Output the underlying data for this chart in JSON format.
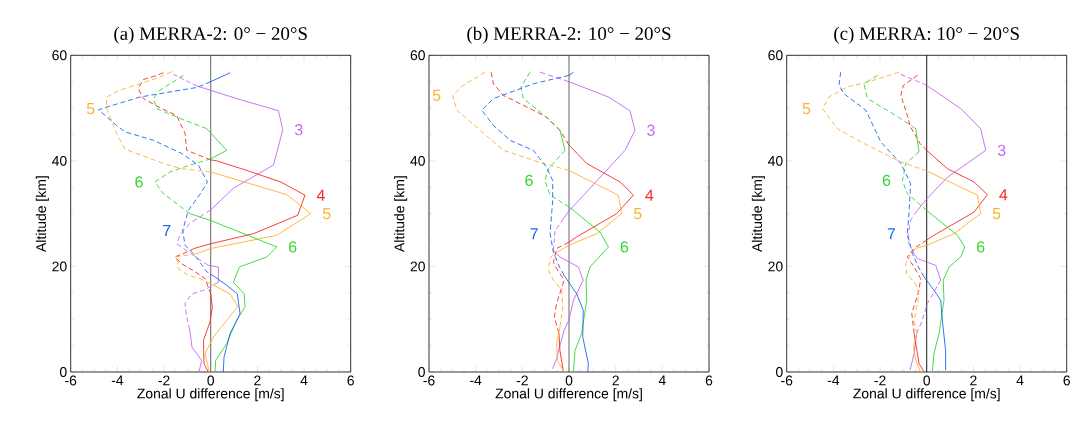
{
  "chart_data": [
    {
      "type": "line",
      "title": "(a) MERRA-2: 0° − 20°S",
      "xlabel": "Zonal U difference [m/s]",
      "ylabel": "Altitude [km]",
      "xlim": [
        -6,
        6
      ],
      "xticks": [
        -6,
        -4,
        -2,
        0,
        2,
        4,
        6
      ],
      "ylim": [
        0,
        60
      ],
      "yticks": [
        0,
        20,
        40,
        60
      ],
      "ref_lines": [
        {
          "axis": "x",
          "value": 0,
          "color": "#555555"
        }
      ],
      "annotations": [
        {
          "text": "3",
          "x": 3.09,
          "y": 45.9
        },
        {
          "text": "4",
          "x": 4.04,
          "y": 33.5
        },
        {
          "text": "5",
          "x": 4.29,
          "y": 30
        },
        {
          "text": "5",
          "x": -4.46,
          "y": 49.9
        },
        {
          "text": "6",
          "x": 2.83,
          "y": 23.7
        },
        {
          "text": "6",
          "x": -2.39,
          "y": 36
        },
        {
          "text": "7",
          "x": -1.2,
          "y": 26.8
        }
      ],
      "series": [
        {
          "color": "#c366f5",
          "line_style": "solid",
          "x": [
            -0.5,
            -0.39,
            -0.8,
            -0.9
          ],
          "values": [
            0,
            2.2,
            4.7,
            8
          ]
        },
        {
          "color": "#c366f5",
          "line_style": "dashed",
          "x": [
            -0.9,
            -1.03,
            -1.1,
            -0.81,
            -0.3,
            0.33
          ],
          "values": [
            8,
            10.4,
            13,
            14.8,
            15.5,
            17
          ]
        },
        {
          "color": "#c366f5",
          "line_style": "solid",
          "x": [
            0.33,
            0.33,
            -0.1
          ],
          "values": [
            17,
            19.9,
            20.2
          ]
        },
        {
          "color": "#c366f5",
          "line_style": "dashed",
          "x": [
            -0.1,
            -0.46,
            -1.03,
            -1.46,
            -1.31,
            -0.89,
            0
          ],
          "values": [
            20.2,
            21.2,
            23,
            24.3,
            26,
            28.2,
            30.7
          ]
        },
        {
          "color": "#c366f5",
          "line_style": "solid",
          "x": [
            0,
            0.97,
            2.69,
            3.09,
            2.9,
            1.26,
            -0.6
          ],
          "values": [
            30.7,
            34.8,
            39.2,
            45.9,
            49.5,
            51.6,
            54.2
          ]
        },
        {
          "color": "#c366f5",
          "line_style": "dashed",
          "x": [
            -0.6,
            -1.6
          ],
          "values": [
            54.2,
            56.4
          ]
        },
        {
          "color": "#f52a20",
          "line_style": "solid",
          "x": [
            -0.1,
            -0.29,
            -0.31,
            -0.03,
            0.07,
            0
          ],
          "values": [
            0,
            1.6,
            6,
            9.5,
            12.3,
            14.8
          ]
        },
        {
          "color": "#f52a20",
          "line_style": "dashed",
          "x": [
            0,
            -0.24,
            -0.67,
            -1.24,
            -1.53,
            -1.03,
            -0.71
          ],
          "values": [
            14.8,
            17.7,
            19,
            20.5,
            21.8,
            22.7,
            23.4
          ]
        },
        {
          "color": "#f52a20",
          "line_style": "solid",
          "x": [
            -0.71,
            0,
            1.83,
            3.73,
            4.04,
            3.0,
            1.54,
            0.26,
            0
          ],
          "values": [
            23.4,
            24.3,
            26.2,
            29.7,
            33.5,
            36,
            38.2,
            40,
            40.2
          ]
        },
        {
          "color": "#f52a20",
          "line_style": "dashed",
          "x": [
            0,
            -1.03,
            -1.1,
            -1.46,
            -2.1,
            -2.89,
            -3.1,
            -2.89,
            -2.31,
            -2.03
          ],
          "values": [
            40.2,
            42,
            45.2,
            48.6,
            49.9,
            51.8,
            53.7,
            55.4,
            56.2,
            56.7
          ]
        },
        {
          "color": "#ffb033",
          "line_style": "solid",
          "x": [
            -0.06,
            -0.24,
            0.11,
            1.16,
            0.83,
            0
          ],
          "values": [
            0,
            3.5,
            6.6,
            12.4,
            14.8,
            16.7
          ]
        },
        {
          "color": "#ffb033",
          "line_style": "dashed",
          "x": [
            0,
            -0.46,
            -0.96,
            -1.39,
            -1.41,
            -1.53,
            -0.6
          ],
          "values": [
            16.7,
            17.7,
            18.3,
            19.6,
            20.8,
            21.8,
            22.4
          ]
        },
        {
          "color": "#ffb033",
          "line_style": "solid",
          "x": [
            -0.6,
            0,
            2.83,
            4.29,
            3.26,
            0
          ],
          "values": [
            22.4,
            23.4,
            25.9,
            30,
            33.6,
            37.9
          ]
        },
        {
          "color": "#ffb033",
          "line_style": "dashed",
          "x": [
            0,
            -1.24,
            -1.89,
            -3.67,
            -4.03,
            -4.46,
            -4.46,
            -3.89,
            -3.03,
            -2.17,
            -1.67
          ],
          "values": [
            37.9,
            38.5,
            39.3,
            42.2,
            45.2,
            49.9,
            52.1,
            53.4,
            54.6,
            55.9,
            56.9
          ]
        },
        {
          "color": "#33d633",
          "line_style": "solid",
          "x": [
            0.19,
            0.21,
            0.69,
            1.11,
            1.47,
            1.44,
            0.97,
            1.23,
            2.4,
            2.83,
            0,
            -0.89
          ],
          "values": [
            0,
            2.2,
            5.4,
            9.8,
            12.3,
            14.8,
            17,
            19.9,
            21.8,
            23.7,
            28.7,
            30
          ]
        },
        {
          "color": "#33d633",
          "line_style": "dashed",
          "x": [
            -0.89,
            -2.03,
            -2.39,
            -1.74,
            -1.03,
            0
          ],
          "values": [
            30,
            33.8,
            36,
            37.9,
            39,
            40.4
          ]
        },
        {
          "color": "#33d633",
          "line_style": "solid",
          "x": [
            0,
            0.69,
            -0.17
          ],
          "values": [
            40.4,
            42,
            46.1
          ]
        },
        {
          "color": "#33d633",
          "line_style": "dashed",
          "x": [
            -0.17,
            -1.46,
            -2.31,
            -2.46,
            -2.17,
            -1.17
          ],
          "values": [
            46.1,
            48.3,
            49.9,
            51.8,
            53.4,
            56.2
          ]
        },
        {
          "color": "#1a66f0",
          "line_style": "solid",
          "x": [
            0.54,
            0.57,
            0.83,
            1.26,
            1.14,
            0.69,
            0.19
          ],
          "values": [
            0,
            2.8,
            7.3,
            11,
            14.8,
            16.4,
            18
          ]
        },
        {
          "color": "#1a66f0",
          "line_style": "dashed",
          "x": [
            0.19,
            -0.17,
            -0.46,
            -0.74,
            -1.1,
            -1.2,
            -0.96,
            -0.39,
            -0.14,
            -0.53,
            -1.24,
            -2.46,
            -3.67,
            -4.03,
            -4.81,
            -3.03,
            -0.6,
            0
          ],
          "values": [
            18,
            19,
            20.8,
            22.4,
            24,
            26.8,
            30.6,
            34.1,
            36,
            39.2,
            41.4,
            43.9,
            45.5,
            46.7,
            49.7,
            52.1,
            53.9,
            55
          ]
        },
        {
          "color": "#1a66f0",
          "line_style": "solid",
          "x": [
            0,
            0.83
          ],
          "values": [
            55,
            56.7
          ]
        }
      ]
    },
    {
      "type": "line",
      "title": "(b) MERRA-2: 10° − 20°S",
      "xlabel": "Zonal U difference [m/s]",
      "ylabel": "Altitude [km]",
      "xlim": [
        -6,
        6
      ],
      "xticks": [
        -6,
        -4,
        -2,
        0,
        2,
        4,
        6
      ],
      "ylim": [
        0,
        60
      ],
      "yticks": [
        0,
        20,
        40,
        60
      ],
      "ref_lines": [
        {
          "axis": "x",
          "value": 0,
          "color": "#555555"
        }
      ],
      "annotations": [
        {
          "text": "3",
          "x": 2.83,
          "y": 45.8
        },
        {
          "text": "4",
          "x": 2.76,
          "y": 33.5
        },
        {
          "text": "5",
          "x": 2.26,
          "y": 30
        },
        {
          "text": "5",
          "x": -4.99,
          "y": 52.4
        },
        {
          "text": "6",
          "x": 1.69,
          "y": 23.7
        },
        {
          "text": "6",
          "x": -1.03,
          "y": 36.3
        },
        {
          "text": "7",
          "x": -0.81,
          "y": 26.2
        }
      ],
      "series": [
        {
          "color": "#c366f5",
          "line_style": "solid",
          "x": [
            -0.71,
            -0.53,
            -0.41,
            -0.21,
            0,
            0.19,
            0.61,
            0.4,
            -0.39,
            -0.67
          ],
          "values": [
            0.6,
            2.5,
            4.7,
            7.9,
            9.9,
            13.6,
            17.4,
            19.9,
            21.8,
            23
          ]
        },
        {
          "color": "#c366f5",
          "line_style": "dashed",
          "x": [
            -0.67,
            -0.6,
            -0.24
          ],
          "values": [
            23,
            26.8,
            29
          ]
        },
        {
          "color": "#c366f5",
          "line_style": "solid",
          "x": [
            -0.24,
            0,
            2.4,
            2.83,
            2.61,
            1.69,
            0
          ],
          "values": [
            29,
            30.5,
            42,
            45.8,
            49.5,
            52.1,
            55
          ]
        },
        {
          "color": "#c366f5",
          "line_style": "dashed",
          "x": [
            0,
            -1.24
          ],
          "values": [
            55,
            56.8
          ]
        },
        {
          "color": "#f52a20",
          "line_style": "solid",
          "x": [
            -0.24,
            -0.39,
            -0.43
          ],
          "values": [
            0,
            4.1,
            7.3
          ]
        },
        {
          "color": "#f52a20",
          "line_style": "dashed",
          "x": [
            -0.43,
            -0.63,
            -0.53,
            -0.21,
            -0.53,
            -0.67,
            -0.53,
            0
          ],
          "values": [
            7.3,
            10.4,
            13,
            17.4,
            19.6,
            20.8,
            23.4,
            24.6
          ]
        },
        {
          "color": "#f52a20",
          "line_style": "solid",
          "x": [
            0,
            0.33,
            2.04,
            2.76,
            2.19,
            0.76,
            0
          ],
          "values": [
            24.6,
            25.6,
            30,
            33.5,
            36,
            39.5,
            43
          ]
        },
        {
          "color": "#f52a20",
          "line_style": "dashed",
          "x": [
            0,
            -0.39,
            -0.96,
            -1.67,
            -2.81,
            -3.24,
            -3.34
          ],
          "values": [
            43,
            45.8,
            48.3,
            49.9,
            52.4,
            54.6,
            56.8
          ]
        },
        {
          "color": "#ffb033",
          "line_style": "solid",
          "x": [
            -0.21,
            -0.5,
            -0.53,
            -0.39
          ],
          "values": [
            0,
            2.2,
            5.4,
            8.5
          ]
        },
        {
          "color": "#ffb033",
          "line_style": "dashed",
          "x": [
            -0.39,
            -0.27,
            -0.31,
            -0.67,
            -0.89,
            -0.81,
            -0.67,
            -0.39
          ],
          "values": [
            8.5,
            12.3,
            15.5,
            17.4,
            19.3,
            21.5,
            22.4,
            23
          ]
        },
        {
          "color": "#ffb033",
          "line_style": "solid",
          "x": [
            -0.39,
            0,
            1.19,
            2.26,
            2.11,
            0
          ],
          "values": [
            23,
            24,
            26.2,
            30,
            33.5,
            38.2
          ]
        },
        {
          "color": "#ffb033",
          "line_style": "dashed",
          "x": [
            0,
            -1.1,
            -2.81,
            -3.81,
            -4.81,
            -4.99,
            -4.53,
            -3.6
          ],
          "values": [
            38.2,
            39.5,
            42,
            45.8,
            49.6,
            52.4,
            54.3,
            56.8
          ]
        },
        {
          "color": "#33d633",
          "line_style": "solid",
          "x": [
            0.19,
            0.26,
            0.54,
            0.76,
            0.73,
            0.9,
            1.69,
            1.33,
            0
          ],
          "values": [
            0,
            4.1,
            7.3,
            13.6,
            17.4,
            19.9,
            23.7,
            26.5,
            31.3
          ]
        },
        {
          "color": "#33d633",
          "line_style": "dashed",
          "x": [
            0,
            -0.81,
            -1.03,
            -0.89,
            -0.17
          ],
          "values": [
            31.3,
            33.5,
            36.3,
            38.5,
            42
          ]
        },
        {
          "color": "#33d633",
          "line_style": "solid",
          "x": [
            -0.17,
            -0.39
          ],
          "values": [
            42,
            45.8
          ]
        },
        {
          "color": "#33d633",
          "line_style": "dashed",
          "x": [
            -0.39,
            -1.24,
            -1.96,
            -2.06,
            -1.67
          ],
          "values": [
            45.8,
            49.3,
            51.8,
            54,
            56.8
          ]
        },
        {
          "color": "#1a66f0",
          "line_style": "solid",
          "x": [
            0.8,
            0.83,
            0.59,
            0.61,
            0.33,
            -0.21
          ],
          "values": [
            0,
            1.6,
            6.6,
            11.7,
            14.8,
            18.3
          ]
        },
        {
          "color": "#1a66f0",
          "line_style": "dashed",
          "x": [
            -0.21,
            -0.41,
            -0.67,
            -0.81,
            -0.7,
            -0.7,
            -0.96,
            -1.53,
            -2.53,
            -3.24,
            -3.74,
            -3.24,
            -1.53,
            0
          ],
          "values": [
            18.3,
            19.9,
            22.7,
            26.2,
            32.5,
            36.3,
            38.8,
            42,
            43.9,
            46.7,
            49.6,
            51.8,
            54.6,
            56.2
          ]
        },
        {
          "color": "#1a66f0",
          "line_style": "solid",
          "x": [
            0,
            0.19
          ],
          "values": [
            56.2,
            56.8
          ]
        }
      ]
    },
    {
      "type": "line",
      "title": "(c) MERRA: 10° − 20°S",
      "xlabel": "Zonal U difference [m/s]",
      "ylabel": "Altitude [km]",
      "xlim": [
        -6,
        6
      ],
      "xticks": [
        -6,
        -4,
        -2,
        0,
        2,
        4,
        6
      ],
      "ylim": [
        0,
        60
      ],
      "yticks": [
        0,
        20,
        40,
        60
      ],
      "ref_lines": [
        {
          "axis": "x",
          "value": 0,
          "color": "#000000"
        }
      ],
      "annotations": [
        {
          "text": "3",
          "x": 2.53,
          "y": 42
        },
        {
          "text": "4",
          "x": 2.6,
          "y": 33.6
        },
        {
          "text": "5",
          "x": 2.31,
          "y": 30
        },
        {
          "text": "5",
          "x": -4.47,
          "y": 49.9
        },
        {
          "text": "6",
          "x": 1.63,
          "y": 23.7
        },
        {
          "text": "6",
          "x": -1.04,
          "y": 36.3
        },
        {
          "text": "7",
          "x": -0.83,
          "y": 26.2
        }
      ],
      "series": [
        {
          "color": "#c366f5",
          "line_style": "solid",
          "x": [
            -0.71,
            -0.54,
            -0.43
          ],
          "values": [
            0.4,
            3.5,
            7.3
          ]
        },
        {
          "color": "#c366f5",
          "line_style": "dashed",
          "x": [
            -0.43,
            -0.19,
            0.03,
            0.6
          ],
          "values": [
            7.3,
            9.8,
            13,
            17.4
          ]
        },
        {
          "color": "#c366f5",
          "line_style": "solid",
          "x": [
            0.6,
            0.39,
            -0.4,
            -0.54
          ],
          "values": [
            17.4,
            20.2,
            21.5,
            22.4
          ]
        },
        {
          "color": "#c366f5",
          "line_style": "dashed",
          "x": [
            -0.54,
            -0.83,
            -0.69,
            -0.4
          ],
          "values": [
            22.4,
            25,
            28.8,
            30.6
          ]
        },
        {
          "color": "#c366f5",
          "line_style": "solid",
          "x": [
            -0.4,
            0,
            0.89,
            2.53,
            2.31,
            1.46,
            0
          ],
          "values": [
            30.6,
            32.8,
            36.9,
            42,
            46.1,
            49.9,
            54.3
          ]
        },
        {
          "color": "#c366f5",
          "line_style": "dashed",
          "x": [
            0,
            -1.11
          ],
          "values": [
            54.3,
            56.4
          ]
        },
        {
          "color": "#f52a20",
          "line_style": "solid",
          "x": [
            -0.11,
            -0.33,
            -0.47,
            -0.54
          ],
          "values": [
            0,
            1.6,
            5.4,
            7.3
          ]
        },
        {
          "color": "#f52a20",
          "line_style": "dashed",
          "x": [
            -0.54,
            -0.64,
            -0.33,
            -0.26,
            -0.54,
            -0.83,
            -0.54,
            0
          ],
          "values": [
            7.3,
            11.1,
            15.5,
            17.7,
            19.9,
            21.8,
            23.4,
            25
          ]
        },
        {
          "color": "#f52a20",
          "line_style": "solid",
          "x": [
            0,
            0.31,
            2.03,
            2.6,
            2.03,
            0.89,
            0
          ],
          "values": [
            25,
            25.9,
            30.3,
            33.6,
            36,
            38.5,
            42
          ]
        },
        {
          "color": "#f52a20",
          "line_style": "dashed",
          "x": [
            0,
            -0.29,
            -0.69,
            -0.9,
            -1.11,
            -1,
            -0.4
          ],
          "values": [
            42,
            43.3,
            46.4,
            49.6,
            52.4,
            54.3,
            56.2
          ]
        },
        {
          "color": "#ffb033",
          "line_style": "solid",
          "x": [
            -0.26,
            -0.47,
            -0.57,
            -0.43
          ],
          "values": [
            0,
            2.2,
            4.7,
            7.3
          ]
        },
        {
          "color": "#ffb033",
          "line_style": "dashed",
          "x": [
            -0.43,
            -0.54,
            -0.33,
            -0.47,
            -0.86,
            -0.9,
            -0.69,
            -0.47
          ],
          "values": [
            7.3,
            9.8,
            14.8,
            16.7,
            18.6,
            20.5,
            22.4,
            23.4
          ]
        },
        {
          "color": "#ffb033",
          "line_style": "solid",
          "x": [
            -0.47,
            0,
            1.17,
            2.31,
            2.17,
            0
          ],
          "values": [
            23.4,
            24,
            26.2,
            30,
            33.5,
            38.1
          ]
        },
        {
          "color": "#ffb033",
          "line_style": "dashed",
          "x": [
            0,
            -1.11,
            -2.69,
            -3.83,
            -4.47,
            -4.19,
            -3.4,
            -2.54,
            -1.19
          ],
          "values": [
            38.1,
            39.8,
            43.3,
            46.1,
            49.9,
            52.1,
            54,
            54.9,
            56.8
          ]
        },
        {
          "color": "#33d633",
          "line_style": "solid",
          "x": [
            0.24,
            0.31,
            0.53,
            0.74,
            0.71,
            0.96,
            1.46,
            1.63,
            1.31,
            0
          ],
          "values": [
            0,
            3.5,
            7.3,
            13.6,
            17.4,
            19.9,
            21.8,
            23.7,
            25.9,
            30.6
          ]
        },
        {
          "color": "#33d633",
          "line_style": "dashed",
          "x": [
            0,
            -0.83,
            -1.04,
            -0.9,
            -0.33
          ],
          "values": [
            30.6,
            33.8,
            36.3,
            39.5,
            41.7
          ]
        },
        {
          "color": "#33d633",
          "line_style": "solid",
          "x": [
            -0.33,
            -0.47
          ],
          "values": [
            41.7,
            46.1
          ]
        },
        {
          "color": "#33d633",
          "line_style": "dashed",
          "x": [
            -0.47,
            -1.33,
            -2.54,
            -2.69,
            -2.11
          ],
          "values": [
            46.1,
            48.6,
            51.8,
            54.6,
            56.2
          ]
        },
        {
          "color": "#1a66f0",
          "line_style": "solid",
          "x": [
            0.81,
            0.81,
            0.67,
            0.6,
            0.31,
            -0.11
          ],
          "values": [
            0.3,
            4.1,
            9.8,
            13.6,
            15.5,
            18
          ]
        },
        {
          "color": "#1a66f0",
          "line_style": "dashed",
          "x": [
            -0.11,
            -0.36,
            -0.61,
            -0.83,
            -0.76,
            -0.69,
            -1.11,
            -1.97,
            -2.61,
            -3.54,
            -3.76,
            -3.69
          ],
          "values": [
            18,
            19.9,
            22.4,
            26.2,
            30,
            35.7,
            39.5,
            43.6,
            49.6,
            52.7,
            54.3,
            56.8
          ]
        }
      ]
    }
  ]
}
